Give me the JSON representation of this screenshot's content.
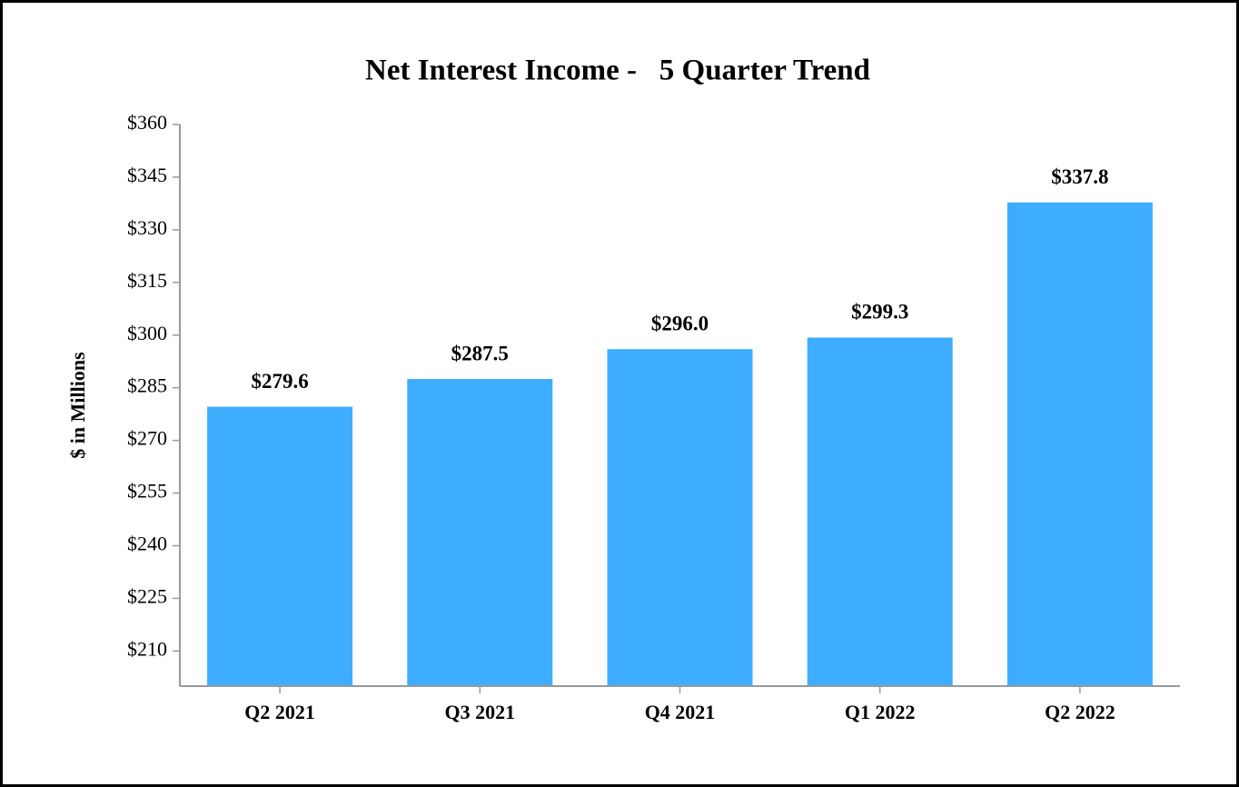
{
  "chart_data": {
    "type": "bar",
    "title": "Net Interest Income -   5 Quarter Trend",
    "y_label": "$ in Millions",
    "categories": [
      "Q2 2021",
      "Q3 2021",
      "Q4 2021",
      "Q1 2022",
      "Q2 2022"
    ],
    "values": [
      279.6,
      287.5,
      296.0,
      299.3,
      337.8
    ],
    "value_labels": [
      "$279.6",
      "$287.5",
      "$296.0",
      "$299.3",
      "$337.8"
    ],
    "color": "#3fadfd",
    "ylim": [
      200,
      360
    ],
    "yticks": [
      {
        "value": 210,
        "label": "$210"
      },
      {
        "value": 225,
        "label": "$225"
      },
      {
        "value": 240,
        "label": "$240"
      },
      {
        "value": 255,
        "label": "$255"
      },
      {
        "value": 270,
        "label": "$270"
      },
      {
        "value": 285,
        "label": "$285"
      },
      {
        "value": 300,
        "label": "$300"
      },
      {
        "value": 315,
        "label": "$315"
      },
      {
        "value": 330,
        "label": "$330"
      },
      {
        "value": 345,
        "label": "$345"
      },
      {
        "value": 360,
        "label": "$360"
      }
    ],
    "grid": false
  }
}
